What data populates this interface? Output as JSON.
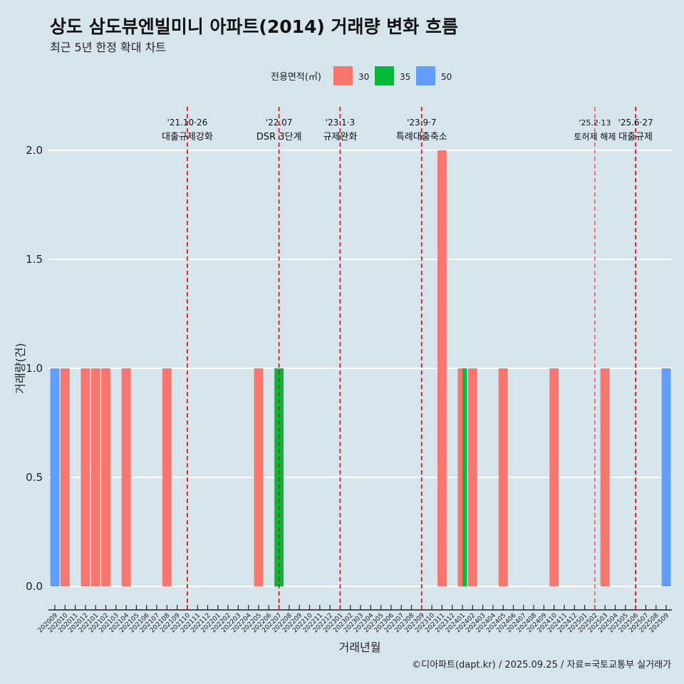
{
  "header": {
    "title": "상도 삼도뷰엔빌미니 아파트(2014) 거래량 변화 흐름",
    "subtitle": "최근 5년 한정 확대 차트"
  },
  "caption": "©디아파트(dapt.kr) / 2025.09.25 / 자료=국토교통부 실거래가",
  "chart_data": {
    "type": "bar",
    "xlabel": "거래년월",
    "ylabel": "거래량(건)",
    "ylim": [
      0,
      2
    ],
    "yticks": [
      "0.0",
      "0.5",
      "1.0",
      "1.5",
      "2.0"
    ],
    "legend": {
      "title": "전용면적(㎡)",
      "placement": "top",
      "entries": [
        {
          "name": "30",
          "color": "#f8766d"
        },
        {
          "name": "35",
          "color": "#00ba38"
        },
        {
          "name": "50",
          "color": "#619cff"
        }
      ]
    },
    "categories": [
      "202009",
      "202010",
      "202011",
      "202012",
      "202101",
      "202102",
      "202103",
      "202104",
      "202105",
      "202106",
      "202107",
      "202108",
      "202109",
      "202110",
      "202111",
      "202112",
      "202201",
      "202202",
      "202203",
      "202204",
      "202205",
      "202206",
      "202207",
      "202208",
      "202209",
      "202210",
      "202211",
      "202212",
      "202301",
      "202302",
      "202303",
      "202304",
      "202305",
      "202306",
      "202307",
      "202308",
      "202309",
      "202310",
      "202311",
      "202312",
      "202401",
      "202402",
      "202403",
      "202404",
      "202405",
      "202406",
      "202407",
      "202408",
      "202409",
      "202410",
      "202411",
      "202412",
      "202501",
      "202502",
      "202503",
      "202504",
      "202505",
      "202506",
      "202507",
      "202508",
      "202509"
    ],
    "bars": [
      {
        "month": "202009",
        "area": "50",
        "value": 1
      },
      {
        "month": "202010",
        "area": "30",
        "value": 1
      },
      {
        "month": "202012",
        "area": "30",
        "value": 1
      },
      {
        "month": "202101",
        "area": "30",
        "value": 1
      },
      {
        "month": "202102",
        "area": "30",
        "value": 1
      },
      {
        "month": "202104",
        "area": "30",
        "value": 1
      },
      {
        "month": "202108",
        "area": "30",
        "value": 1
      },
      {
        "month": "202205",
        "area": "30",
        "value": 1
      },
      {
        "month": "202207",
        "area": "35",
        "value": 1
      },
      {
        "month": "202311",
        "area": "30",
        "value": 2
      },
      {
        "month": "202401",
        "area": "30",
        "value": 1,
        "dodge": 0
      },
      {
        "month": "202401",
        "area": "35",
        "value": 1,
        "dodge": 1
      },
      {
        "month": "202402",
        "area": "30",
        "value": 1
      },
      {
        "month": "202405",
        "area": "30",
        "value": 1
      },
      {
        "month": "202410",
        "area": "30",
        "value": 1
      },
      {
        "month": "202503",
        "area": "30",
        "value": 1
      },
      {
        "month": "202509",
        "area": "50",
        "value": 1
      }
    ],
    "events": [
      {
        "month": "202110",
        "date": "'21.10·26",
        "label": "대출규제강화"
      },
      {
        "month": "202207",
        "date": "'22.07",
        "label": "DSR 3단계"
      },
      {
        "month": "202301",
        "date": "'23.1·3",
        "label": "규제완화"
      },
      {
        "month": "202309",
        "date": "'23.9·7",
        "label": "특례대출축소"
      },
      {
        "month": "202502",
        "date": "'25.2·13",
        "label": "토허제 해제",
        "thin": true
      },
      {
        "month": "202506",
        "date": "'25.6·27",
        "label": "대출규제"
      }
    ]
  }
}
